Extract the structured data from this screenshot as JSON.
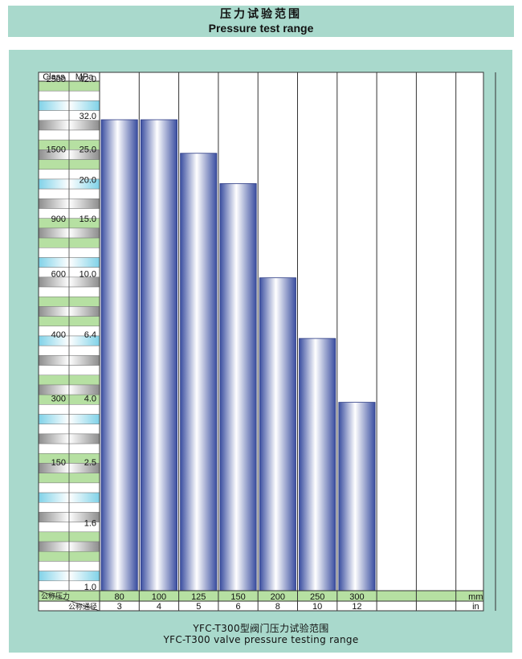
{
  "title_cn": "压力试验范围",
  "title_en": "Pressure test range",
  "chart_data": {
    "type": "bar",
    "header": {
      "class_label": "Class",
      "mpa_label": "MPa"
    },
    "y_scale_labels": [
      {
        "mpa": 42.0,
        "mpa_label": "42.0",
        "class_label": "2500"
      },
      {
        "mpa": 32.0,
        "mpa_label": "32.0",
        "class_label": ""
      },
      {
        "mpa": 25.0,
        "mpa_label": "25.0",
        "class_label": "1500"
      },
      {
        "mpa": 20.0,
        "mpa_label": "20.0",
        "class_label": ""
      },
      {
        "mpa": 15.0,
        "mpa_label": "15.0",
        "class_label": "900"
      },
      {
        "mpa": 10.0,
        "mpa_label": "10.0",
        "class_label": "600"
      },
      {
        "mpa": 6.4,
        "mpa_label": "6.4",
        "class_label": "400"
      },
      {
        "mpa": 4.0,
        "mpa_label": "4.0",
        "class_label": "300"
      },
      {
        "mpa": 2.5,
        "mpa_label": "2.5",
        "class_label": "150"
      },
      {
        "mpa": 1.6,
        "mpa_label": "1.6",
        "class_label": ""
      },
      {
        "mpa": 1.0,
        "mpa_label": "1.0",
        "class_label": ""
      }
    ],
    "columns": [
      {
        "mm": "80",
        "in": "3",
        "value": 32.0
      },
      {
        "mm": "100",
        "in": "4",
        "value": 32.0
      },
      {
        "mm": "125",
        "in": "5",
        "value": 25.0
      },
      {
        "mm": "150",
        "in": "6",
        "value": 20.0
      },
      {
        "mm": "200",
        "in": "8",
        "value": 10.0
      },
      {
        "mm": "250",
        "in": "10",
        "value": 6.4
      },
      {
        "mm": "300",
        "in": "12",
        "value": 4.0
      },
      {
        "mm": "",
        "in": "",
        "value": null
      },
      {
        "mm": "",
        "in": "",
        "value": null
      },
      {
        "mm": "mm",
        "in": "in",
        "value": null
      }
    ],
    "row_label_top": "公称压力",
    "row_label_bottom": "公称通径",
    "colors": {
      "bar_dark": "#3a4ea0",
      "bar_light": "#ffffff",
      "green": "#b6e0a2",
      "teal": "#a9d9cc"
    }
  },
  "caption_cn": "YFC-T300型阀门压力试验范围",
  "caption_en": "YFC-T300 valve pressure testing range"
}
